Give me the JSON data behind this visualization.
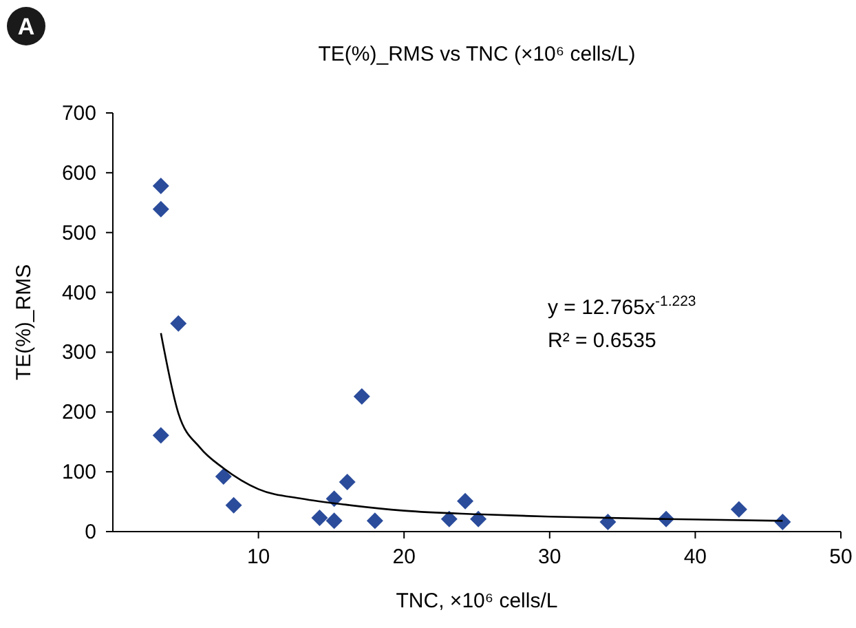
{
  "chart_data": {
    "type": "scatter",
    "title": "TE(%)_RMS vs TNC (×10⁶ cells/L)",
    "xlabel": "TNC, ×10⁶ cells/L",
    "ylabel": "TE(%)_RMS",
    "annotations": [
      "A",
      "y = 12.765x$^{-1.223}$",
      "R² = 0.6535"
    ],
    "xlim": [
      0,
      50
    ],
    "xticks": [
      10,
      20,
      30,
      40,
      50
    ],
    "ylim": [
      0,
      700
    ],
    "yticks": [
      0,
      100,
      200,
      300,
      400,
      500,
      600,
      700
    ],
    "grid": false,
    "series": [
      {
        "color": "#2b4c9b",
        "marker": "diamond",
        "x": [
          3.3,
          3.3,
          3.3,
          4.5,
          7.6,
          8.3,
          14.2,
          15.2,
          15.2,
          16.1,
          17.1,
          18.0,
          23.1,
          24.2,
          25.1,
          34.0,
          38.0,
          43.0,
          46.0
        ],
        "values": [
          578,
          539,
          161,
          348,
          92,
          44,
          23,
          18,
          55,
          83,
          226,
          18,
          21,
          51,
          21,
          16,
          21,
          37,
          16
        ]
      },
      {
        "type": "line",
        "color": "#000000",
        "marker": "none",
        "x": [
          3.3,
          4.5,
          6,
          7.6,
          10,
          13,
          16,
          20,
          25,
          30,
          38,
          46
        ],
        "values": [
          332,
          198,
          140,
          106,
          71,
          55,
          45,
          35,
          29,
          25,
          21,
          18
        ]
      }
    ]
  }
}
